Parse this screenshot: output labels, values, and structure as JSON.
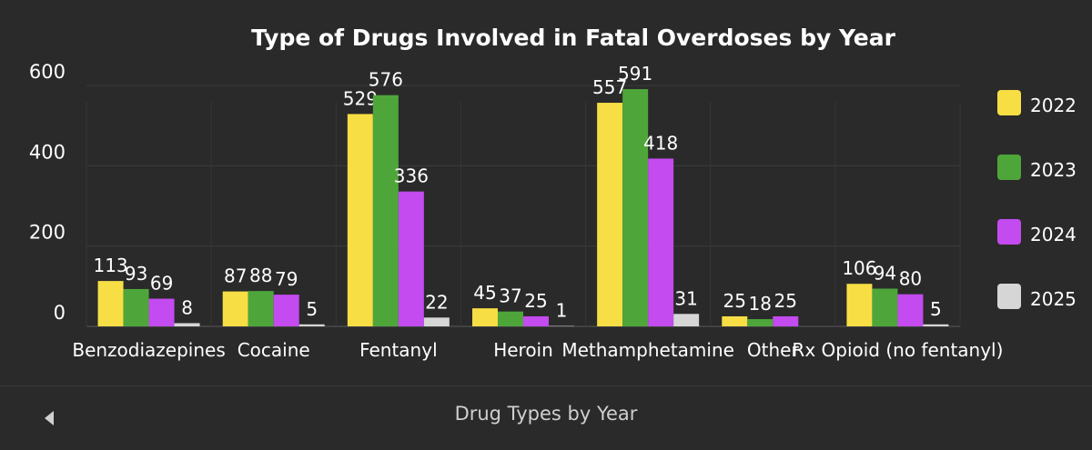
{
  "chart_data": {
    "type": "bar",
    "title": "Type of Drugs Involved in Fatal Overdoses by Year",
    "categories": [
      "Benzodiazepines",
      "Cocaine",
      "Fentanyl",
      "Heroin",
      "Methamphetamine",
      "Other",
      "Rx Opioid (no fentanyl)"
    ],
    "series": [
      {
        "name": "2022",
        "color": "#f7de45",
        "values": [
          113,
          87,
          529,
          45,
          557,
          25,
          106
        ]
      },
      {
        "name": "2023",
        "color": "#4ea63a",
        "values": [
          93,
          88,
          576,
          37,
          591,
          18,
          94
        ]
      },
      {
        "name": "2024",
        "color": "#c34bef",
        "values": [
          69,
          79,
          336,
          25,
          418,
          25,
          80
        ]
      },
      {
        "name": "2025",
        "color": "#d6d6d6",
        "values": [
          8,
          5,
          22,
          1,
          31,
          null,
          5
        ]
      }
    ],
    "yticks": [
      0,
      200,
      400,
      600
    ],
    "ylim": [
      0,
      650
    ],
    "grid": true,
    "legend": "right"
  },
  "footer": {
    "label": "Drug Types by Year",
    "prev_icon": "chevron-left-icon"
  }
}
